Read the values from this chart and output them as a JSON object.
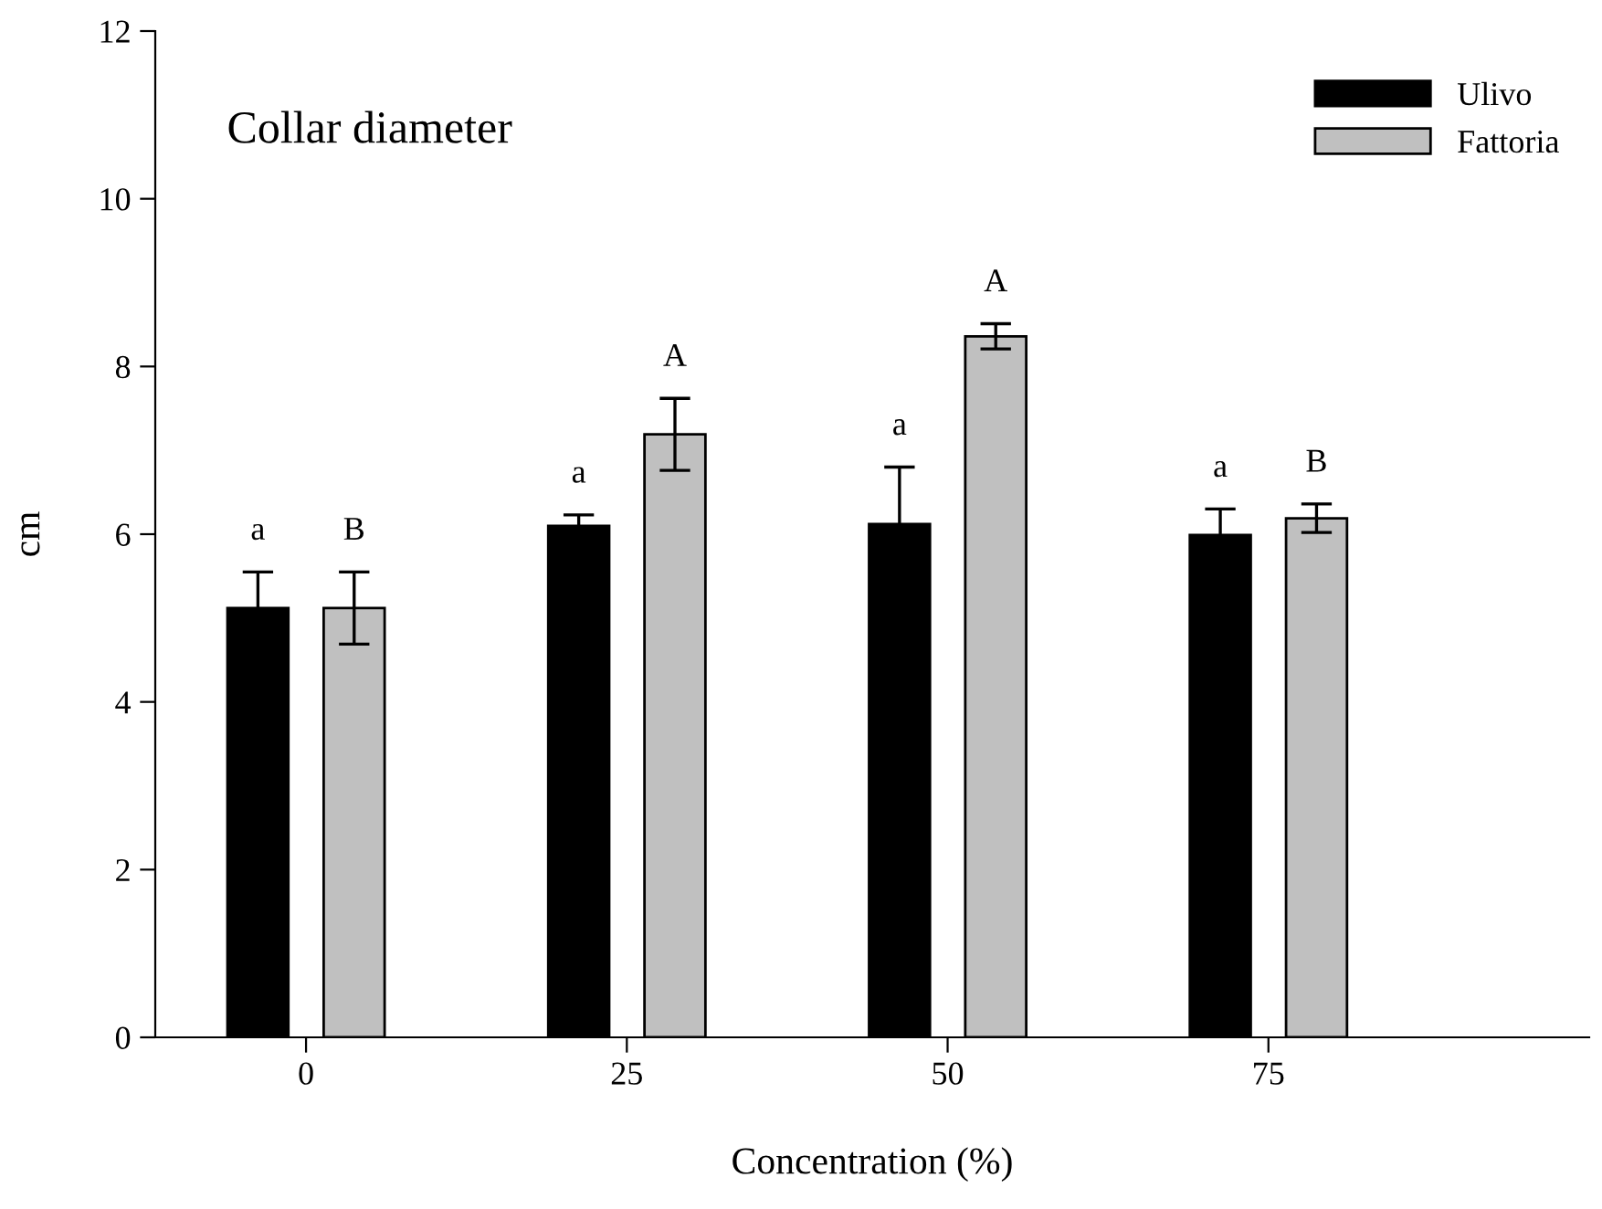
{
  "chart_data": {
    "type": "bar",
    "title": "Collar diameter",
    "xlabel": "Concentration (%)",
    "ylabel": "cm",
    "categories": [
      "0",
      "25",
      "50",
      "75"
    ],
    "series": [
      {
        "name": "Ulivo",
        "color": "#000000",
        "values": [
          5.12,
          6.1,
          6.12,
          5.99
        ],
        "errors": [
          0.43,
          0.13,
          0.68,
          0.31
        ]
      },
      {
        "name": "Fattoria",
        "color": "#c0c0c0",
        "values": [
          5.12,
          7.19,
          8.36,
          6.19
        ],
        "errors": [
          0.43,
          0.43,
          0.15,
          0.17
        ]
      }
    ],
    "ylim": [
      0,
      12
    ],
    "yticks": [
      0,
      2,
      4,
      6,
      8,
      10,
      12
    ],
    "grid": false,
    "legend": "top right",
    "annotations": [
      "a",
      "B",
      "a",
      "A",
      "a",
      "A",
      "a",
      "B"
    ]
  }
}
